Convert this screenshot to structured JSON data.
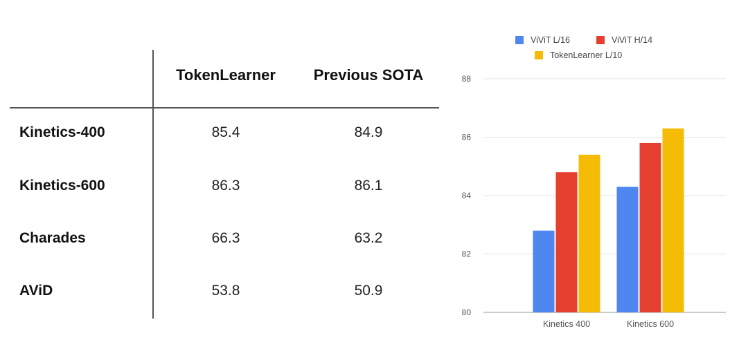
{
  "table": {
    "columns": [
      "TokenLearner",
      "Previous SOTA"
    ],
    "rows": [
      {
        "label": "Kinetics-400",
        "values": [
          "85.4",
          "84.9"
        ]
      },
      {
        "label": "Kinetics-600",
        "values": [
          "86.3",
          "86.1"
        ]
      },
      {
        "label": "Charades",
        "values": [
          "66.3",
          "63.2"
        ]
      },
      {
        "label": "AViD",
        "values": [
          "53.8",
          "50.9"
        ]
      }
    ]
  },
  "chart_data": {
    "type": "bar",
    "title": "",
    "xlabel": "",
    "ylabel": "",
    "categories": [
      "Kinetics 400",
      "Kinetics 600"
    ],
    "ylim": [
      80,
      88
    ],
    "yticks": [
      80,
      82,
      84,
      86,
      88
    ],
    "grid": true,
    "legend_position": "top",
    "series": [
      {
        "name": "ViViT L/16",
        "color": "#4F86F0",
        "values": [
          82.8,
          84.3
        ]
      },
      {
        "name": "ViViT H/14",
        "color": "#E5402F",
        "values": [
          84.8,
          85.8
        ]
      },
      {
        "name": "TokenLearner L/10",
        "color": "#F5BC07",
        "values": [
          85.4,
          86.3
        ]
      }
    ]
  }
}
